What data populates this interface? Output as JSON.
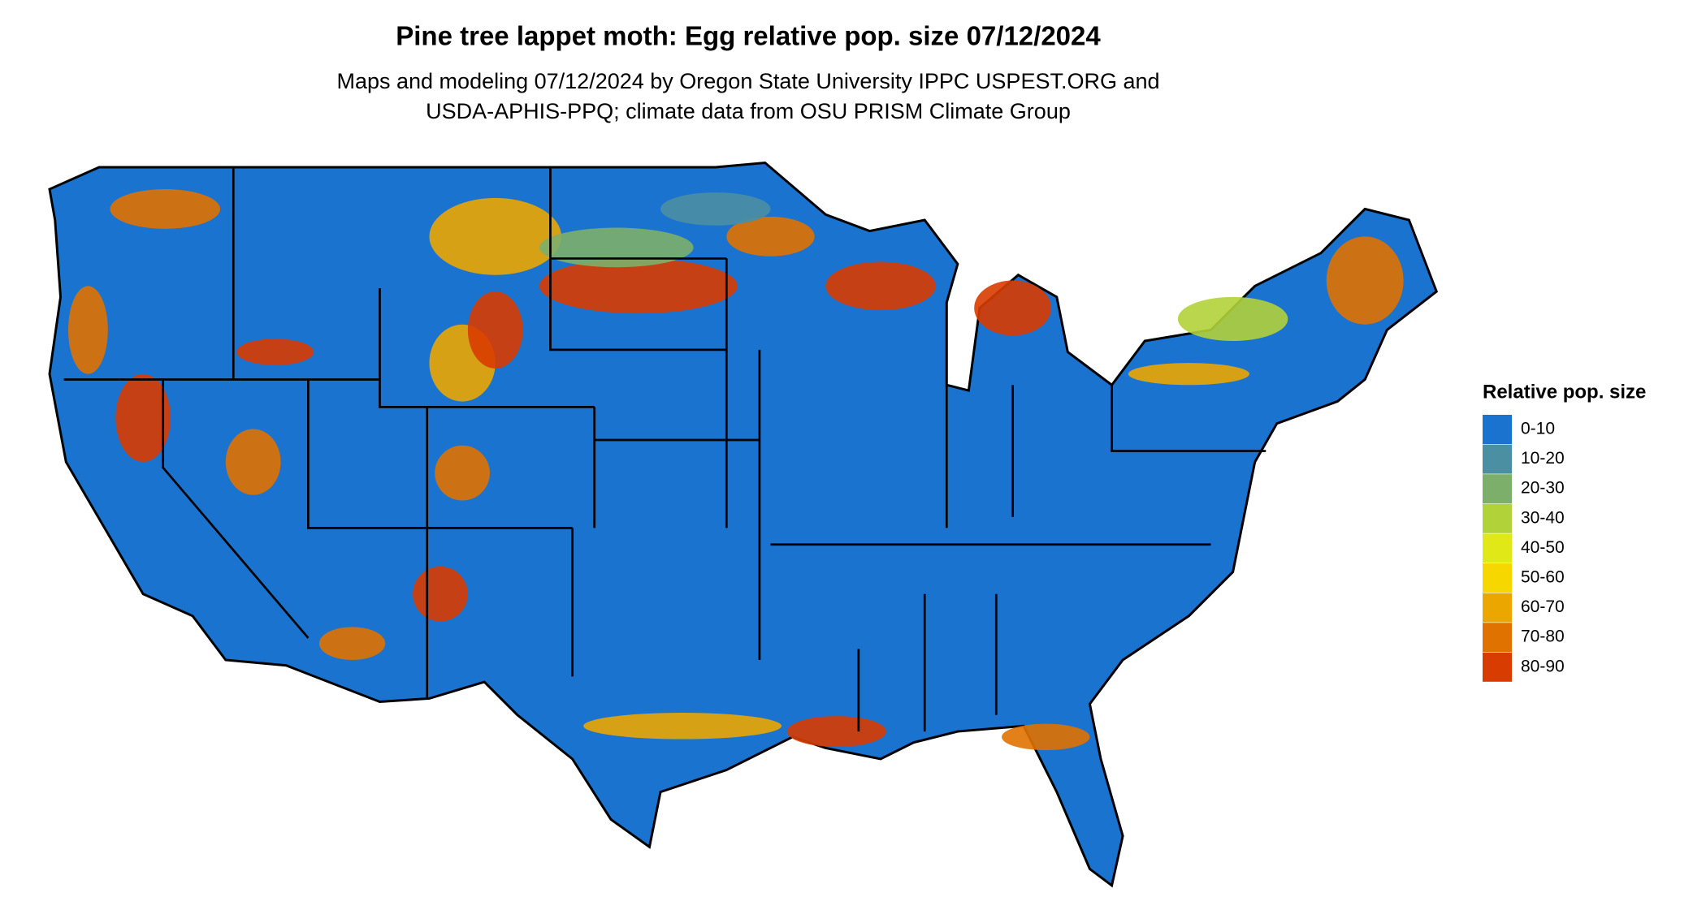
{
  "title": "Pine tree lappet moth: Egg relative pop. size 07/12/2024",
  "subtitle": [
    "Maps and modeling 07/12/2024 by Oregon State University IPPC USPEST.ORG and",
    "USDA-APHIS-PPQ; climate data from OSU PRISM Climate Group"
  ],
  "legend": {
    "title": "Relative pop. size",
    "items": [
      {
        "label": "0-10",
        "color": "#1a73cf"
      },
      {
        "label": "10-20",
        "color": "#4b8fa3"
      },
      {
        "label": "20-30",
        "color": "#7caf6a"
      },
      {
        "label": "30-40",
        "color": "#b2d23a"
      },
      {
        "label": "40-50",
        "color": "#e0e818"
      },
      {
        "label": "50-60",
        "color": "#f6d800"
      },
      {
        "label": "60-70",
        "color": "#eba600"
      },
      {
        "label": "70-80",
        "color": "#e07200"
      },
      {
        "label": "80-90",
        "color": "#d83c00"
      }
    ]
  }
}
